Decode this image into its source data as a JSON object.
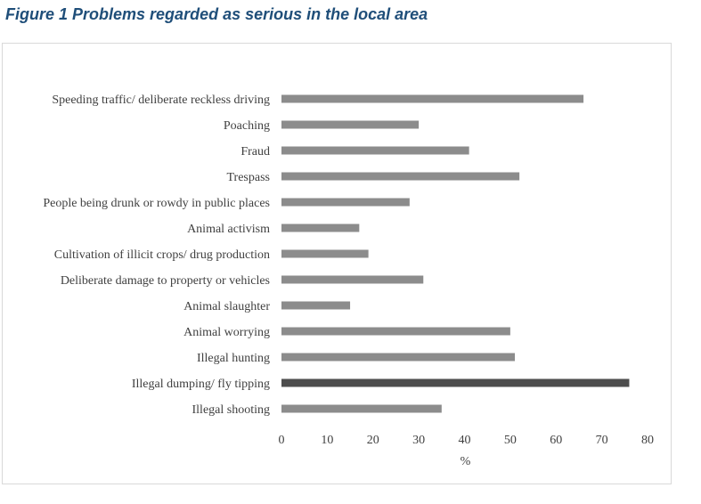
{
  "figure_title": "Figure 1 Problems regarded as serious in the local area",
  "chart_data": {
    "type": "bar",
    "orientation": "horizontal",
    "title": "Figure 1 Problems regarded as serious in the local area",
    "xlabel": "%",
    "ylabel": "",
    "xlim": [
      0,
      80
    ],
    "xticks": [
      0,
      10,
      20,
      30,
      40,
      50,
      60,
      70,
      80
    ],
    "grid": false,
    "legend": "none",
    "categories": [
      "Speeding traffic/ deliberate reckless driving",
      "Poaching",
      "Fraud",
      "Trespass",
      "People being drunk or rowdy in public places",
      "Animal activism",
      "Cultivation of illicit crops/ drug production",
      "Deliberate damage to property or vehicles",
      "Animal slaughter",
      "Animal worrying",
      "Illegal hunting",
      "Illegal dumping/ fly tipping",
      "Illegal shooting"
    ],
    "values": [
      66,
      30,
      41,
      52,
      28,
      17,
      19,
      31,
      15,
      50,
      51,
      76,
      35
    ],
    "highlight_index": 11,
    "colors": {
      "bar": "#8c8c8c",
      "highlight": "#4d4d4d"
    }
  }
}
